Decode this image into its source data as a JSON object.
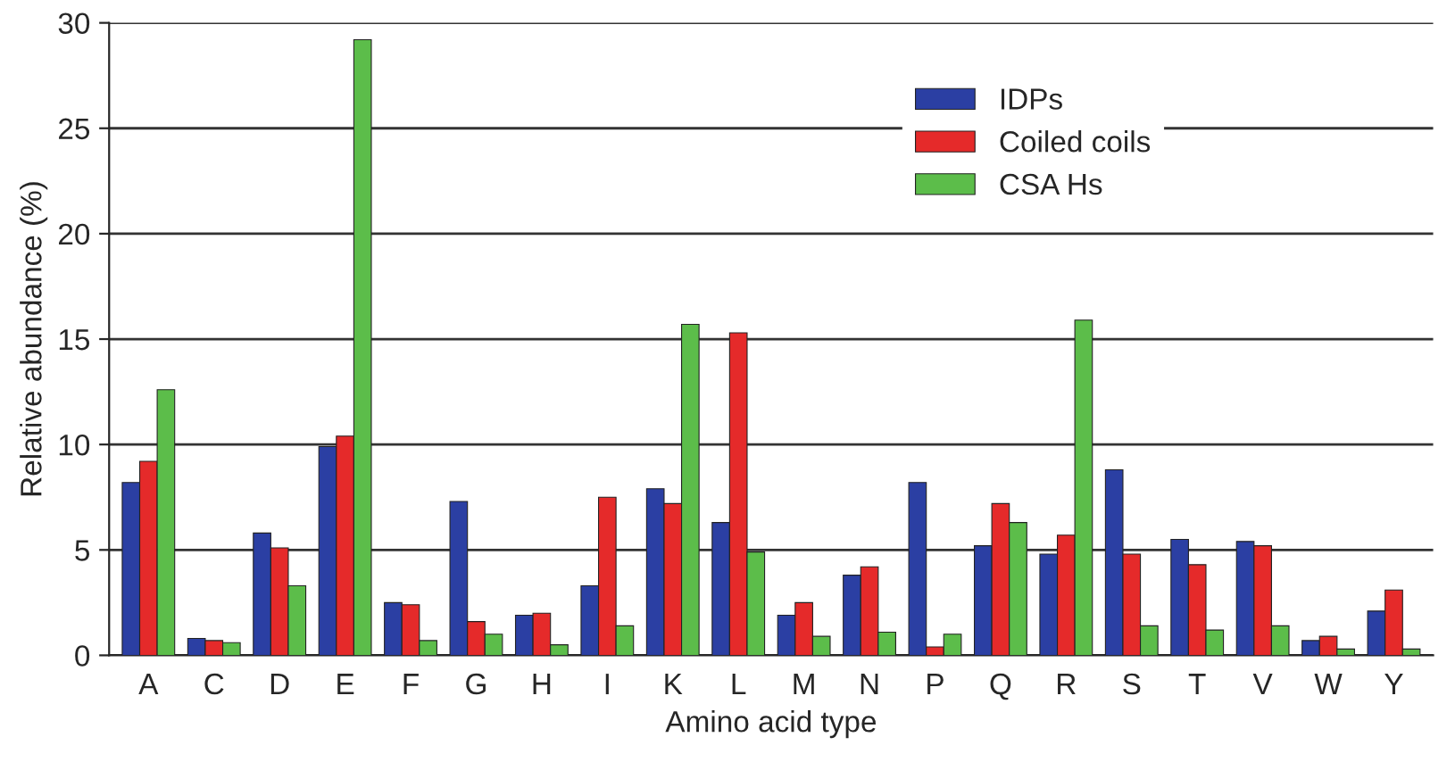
{
  "chart_data": {
    "type": "bar",
    "xlabel": "Amino acid type",
    "ylabel": "Relative abundance (%)",
    "categories": [
      "A",
      "C",
      "D",
      "E",
      "F",
      "G",
      "H",
      "I",
      "K",
      "L",
      "M",
      "N",
      "P",
      "Q",
      "R",
      "S",
      "T",
      "V",
      "W",
      "Y"
    ],
    "series": [
      {
        "name": "IDPs",
        "color": "#2b3fa3",
        "values": [
          8.2,
          0.8,
          5.8,
          9.9,
          2.5,
          7.3,
          1.9,
          3.3,
          7.9,
          6.3,
          1.9,
          3.8,
          8.2,
          5.2,
          4.8,
          8.8,
          5.5,
          5.4,
          0.7,
          2.1
        ]
      },
      {
        "name": "Coiled coils",
        "color": "#e52a2a",
        "values": [
          9.2,
          0.7,
          5.1,
          10.4,
          2.4,
          1.6,
          2.0,
          7.5,
          7.2,
          15.3,
          2.5,
          4.2,
          0.4,
          7.2,
          5.7,
          4.8,
          4.3,
          5.2,
          0.9,
          3.1
        ]
      },
      {
        "name": "CSA Hs",
        "color": "#5cbd4a",
        "values": [
          12.6,
          0.6,
          3.3,
          29.2,
          0.7,
          1.0,
          0.5,
          1.4,
          15.7,
          4.9,
          0.9,
          1.1,
          1.0,
          6.3,
          15.9,
          1.4,
          1.2,
          1.4,
          0.3,
          0.3
        ]
      }
    ],
    "ylim": [
      0,
      30
    ],
    "yticks": [
      0,
      5,
      10,
      15,
      20,
      25,
      30
    ],
    "grid": "y",
    "legend": "top right"
  }
}
